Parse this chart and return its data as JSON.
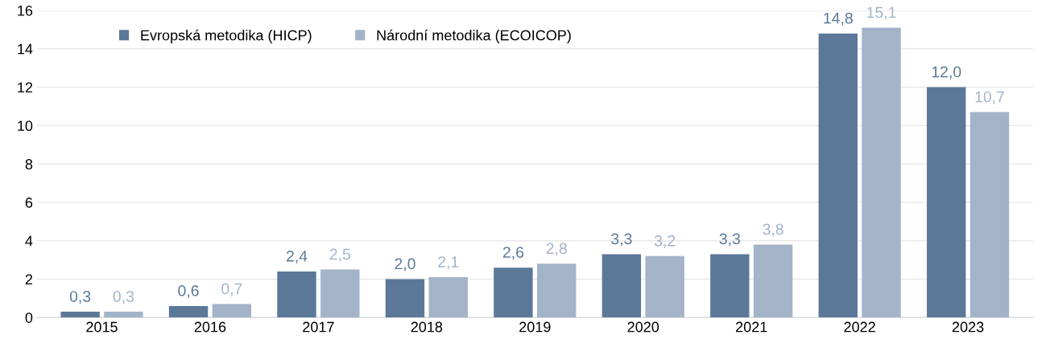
{
  "chart_data": {
    "type": "bar",
    "categories": [
      "2015",
      "2016",
      "2017",
      "2018",
      "2019",
      "2020",
      "2021",
      "2022",
      "2023"
    ],
    "series": [
      {
        "name": "Evropská metodika (HICP)",
        "color": "#5b7899",
        "values": [
          0.3,
          0.6,
          2.4,
          2.0,
          2.6,
          3.3,
          3.3,
          14.8,
          12.0
        ],
        "value_labels": [
          "0,3",
          "0,6",
          "2,4",
          "2,0",
          "2,6",
          "3,3",
          "3,3",
          "14,8",
          "12,0"
        ]
      },
      {
        "name": "Národní metodika (ECOICOP)",
        "color": "#a3b4c9",
        "values": [
          0.3,
          0.7,
          2.5,
          2.1,
          2.8,
          3.2,
          3.8,
          15.1,
          10.7
        ],
        "value_labels": [
          "0,3",
          "0,7",
          "2,5",
          "2,1",
          "2,8",
          "3,2",
          "3,8",
          "15,1",
          "10,7"
        ]
      }
    ],
    "ylim": [
      0,
      16
    ],
    "yticks": [
      0,
      2,
      4,
      6,
      8,
      10,
      12,
      14,
      16
    ],
    "grid": "y",
    "legend": "top left"
  }
}
